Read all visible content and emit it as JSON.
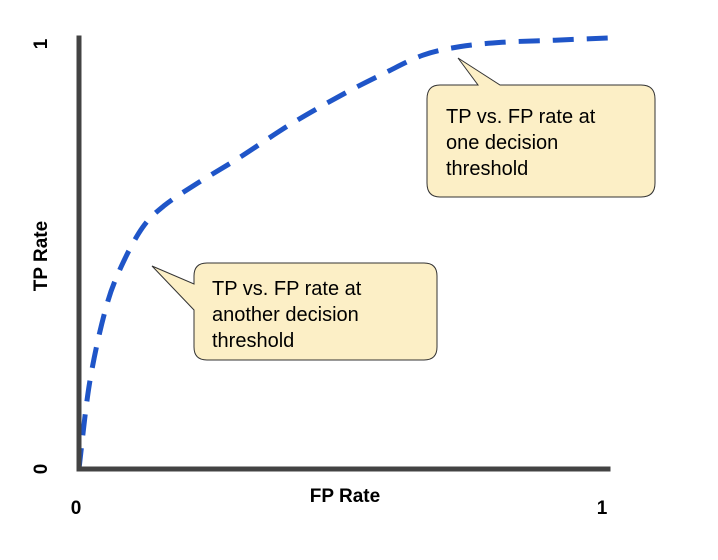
{
  "chart_data": {
    "type": "line",
    "xlabel": "FP Rate",
    "ylabel": "TP Rate",
    "x_ticks": [
      "0",
      "1"
    ],
    "y_ticks": [
      "0",
      "1"
    ],
    "xlim": [
      0,
      1
    ],
    "ylim": [
      0,
      1
    ],
    "grid": false,
    "series": [
      {
        "style": "dashed",
        "color": "#1f55c8",
        "x": [
          0,
          0.02,
          0.05,
          0.08,
          0.12,
          0.16,
          0.22,
          0.3,
          0.4,
          0.5,
          0.58,
          0.65,
          0.72,
          0.8,
          0.9,
          1.0
        ],
        "y": [
          0,
          0.2,
          0.37,
          0.47,
          0.56,
          0.61,
          0.66,
          0.72,
          0.8,
          0.87,
          0.92,
          0.96,
          0.98,
          0.99,
          0.995,
          1.0
        ]
      }
    ],
    "annotations": [
      {
        "text": [
          "TP vs. FP rate at",
          "one decision",
          "threshold"
        ],
        "point": {
          "x": 0.72,
          "y": 0.96
        },
        "fill": "#fcefc6"
      },
      {
        "text": [
          "TP vs. FP rate at",
          "another decision",
          "threshold"
        ],
        "point": {
          "x": 0.13,
          "y": 0.5
        },
        "fill": "#fcefc6"
      }
    ]
  }
}
